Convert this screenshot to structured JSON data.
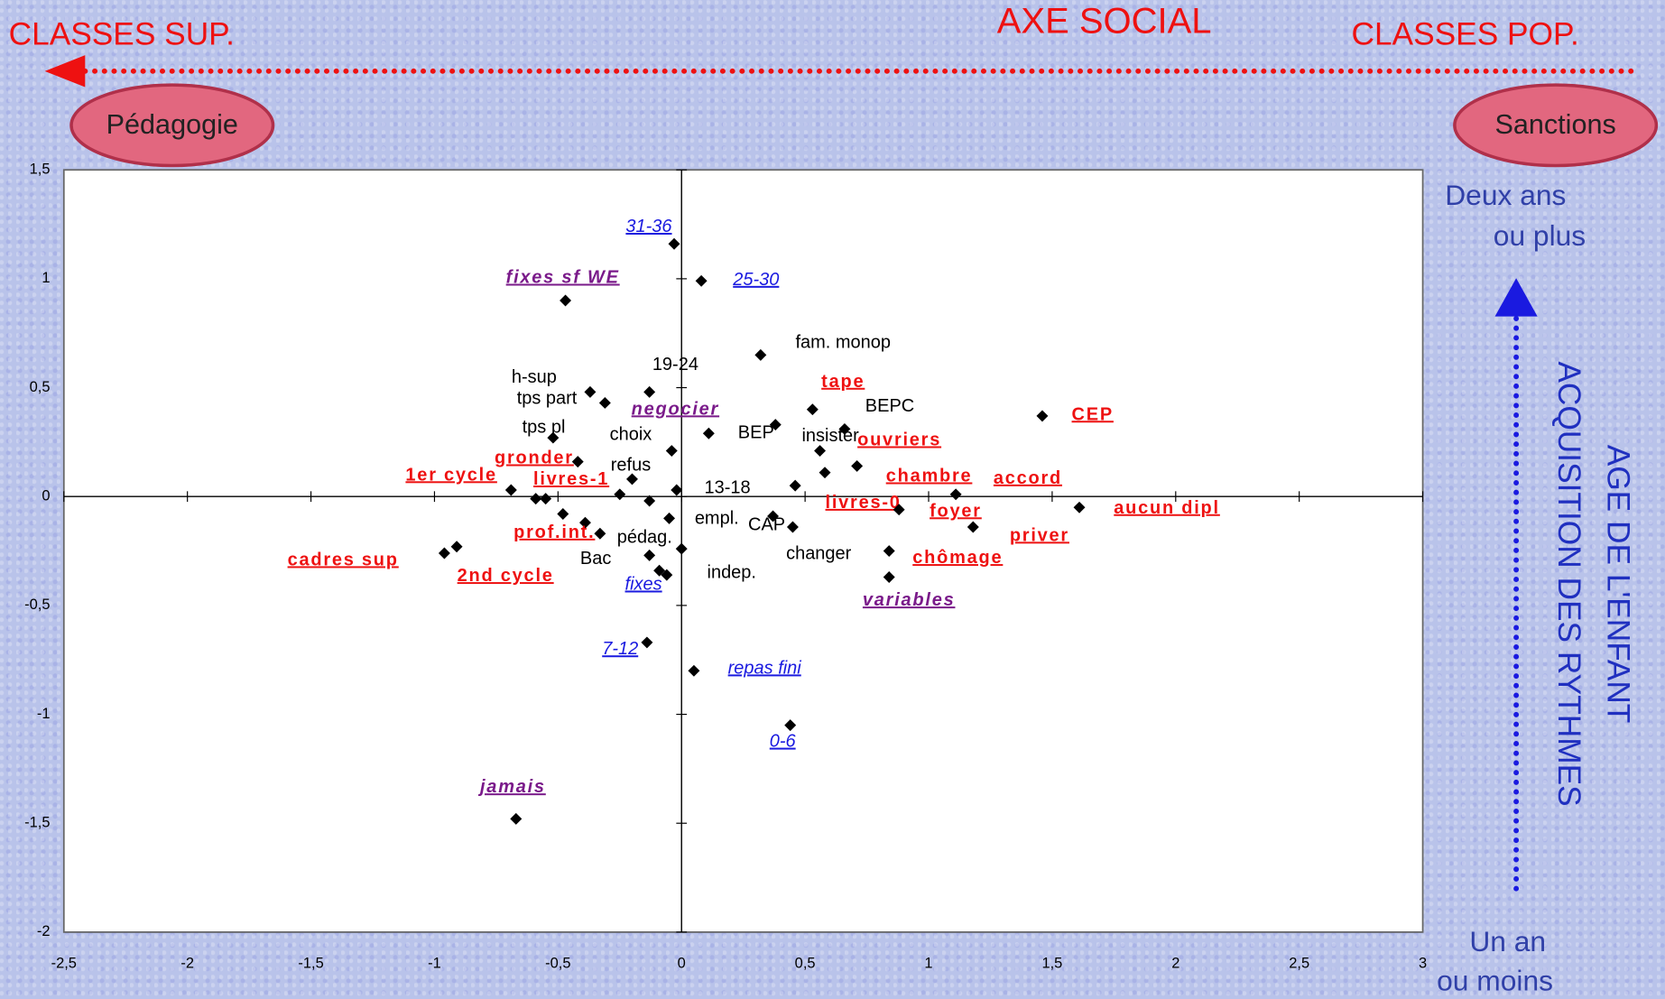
{
  "chart_data": {
    "type": "scatter",
    "title": "AXE SOCIAL",
    "annotations": {
      "left_pole": "CLASSES SUP.",
      "right_pole": "CLASSES POP.",
      "left_badge": "Pédagogie",
      "right_badge": "Sanctions",
      "top_note": [
        "Deux ans",
        "ou plus"
      ],
      "bottom_note": [
        "Un an",
        "ou moins"
      ],
      "vertical_axis": [
        "AGE DE L'ENFANT",
        "ACQUISITION DES RYTHMES"
      ]
    },
    "labels": [
      "31-36",
      "25-30",
      "fixes sf WE",
      "fam. monop",
      "19-24",
      "h-sup",
      "tps part",
      "tps pl",
      "gronder",
      "choix",
      "negocier",
      "BEP",
      "tape",
      "BEPC",
      "insister",
      "ouvriers",
      "chambre",
      "livres-0",
      "13-18",
      "refus",
      "livres-1",
      "1er cycle",
      null,
      null,
      null,
      "empl.",
      null,
      "prof.int.",
      "Bac",
      "pédag.",
      "indep.",
      "fixes",
      null,
      "CAP",
      "changer",
      "chômage",
      "variables",
      "foyer",
      "accord",
      "priver",
      "CEP",
      "aucun dipl",
      "2nd cycle",
      "cadres sup",
      "7-12",
      "repas fini",
      "0-6",
      "jamais"
    ],
    "x": [
      -0.03,
      0.08,
      -0.47,
      0.32,
      -0.13,
      -0.37,
      -0.31,
      -0.52,
      -0.42,
      -0.04,
      0.11,
      0.38,
      0.53,
      0.66,
      0.56,
      0.71,
      0.58,
      0.46,
      -0.02,
      -0.2,
      -0.25,
      -0.69,
      -0.59,
      -0.55,
      -0.13,
      -0.05,
      -0.48,
      -0.39,
      -0.33,
      -0.13,
      0.0,
      -0.09,
      -0.06,
      0.37,
      0.45,
      0.84,
      0.84,
      0.88,
      1.11,
      1.18,
      1.46,
      1.61,
      -0.91,
      -0.96,
      -0.14,
      0.05,
      0.44,
      -0.67
    ],
    "values": [
      1.16,
      0.99,
      0.9,
      0.65,
      0.48,
      0.48,
      0.43,
      0.27,
      0.16,
      0.21,
      0.29,
      0.33,
      0.4,
      0.31,
      0.21,
      0.14,
      0.11,
      0.05,
      0.03,
      0.08,
      0.01,
      0.03,
      -0.01,
      -0.01,
      -0.02,
      -0.1,
      -0.08,
      -0.12,
      -0.17,
      -0.27,
      -0.24,
      -0.34,
      -0.36,
      -0.09,
      -0.14,
      -0.25,
      -0.37,
      -0.06,
      0.01,
      -0.14,
      0.37,
      -0.05,
      -0.23,
      -0.26,
      -0.67,
      -0.8,
      -1.05,
      -1.48
    ],
    "colors": [
      "#1a1ae0",
      "#1a1ae0",
      "#7a1a8a",
      "#000000",
      "#000000",
      "#000000",
      "#000000",
      "#000000",
      "#ee1111",
      "#000000",
      "#7a1a8a",
      "#000000",
      "#ee1111",
      "#000000",
      "#000000",
      "#ee1111",
      "#ee1111",
      "#ee1111",
      "#000000",
      "#000000",
      "#ee1111",
      "#ee1111",
      "#000000",
      "#000000",
      "#000000",
      "#000000",
      "#000000",
      "#ee1111",
      "#000000",
      "#000000",
      "#000000",
      "#1a1ae0",
      "#000000",
      "#000000",
      "#000000",
      "#ee1111",
      "#7a1a8a",
      "#ee1111",
      "#ee1111",
      "#ee1111",
      "#ee1111",
      "#ee1111",
      "#ee1111",
      "#ee1111",
      "#1a1ae0",
      "#1a1ae0",
      "#1a1ae0",
      "#7a1a8a"
    ],
    "marker_color": "#000000",
    "xlim": [
      -2.5,
      3
    ],
    "ylim": [
      -2,
      1.5
    ],
    "xticks": [
      {
        "value": -2.5,
        "label": "-2,5"
      },
      -2,
      {
        "value": -1.5,
        "label": "-1,5"
      },
      -1,
      {
        "value": -0.5,
        "label": "-0,5"
      },
      0,
      {
        "value": 0.5,
        "label": "0,5"
      },
      1,
      {
        "value": 1.5,
        "label": "1,5"
      },
      2,
      {
        "value": 2.5,
        "label": "2,5"
      },
      3
    ],
    "yticks": [
      {
        "value": 1.5,
        "label": "1,5"
      },
      1,
      {
        "value": 0.5,
        "label": "0,5"
      },
      0,
      {
        "value": -0.5,
        "label": "-0,5"
      },
      -1,
      {
        "value": -1.5,
        "label": "-1,5"
      },
      -2
    ]
  }
}
